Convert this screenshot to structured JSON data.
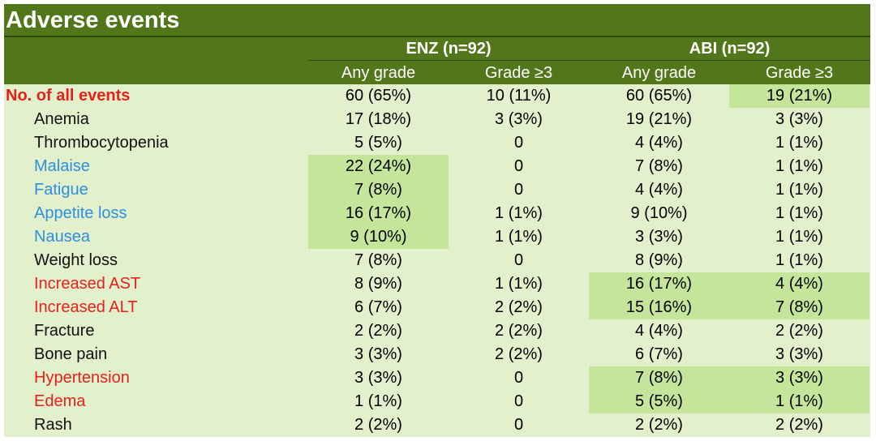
{
  "title": "Adverse events",
  "groups": [
    "ENZ (n=92)",
    "ABI (n=92)"
  ],
  "subheaders": [
    "Any grade",
    "Grade ≥3",
    "Any grade",
    "Grade ≥3"
  ],
  "colors": {
    "header": "#52761a",
    "cell": "#e2f0cc",
    "highlight": "#c5e59a",
    "red": "#e8201c",
    "blue": "#2e8fe0"
  },
  "rows": [
    {
      "label": "No. of all events",
      "style": "bold",
      "values": [
        "60 (65%)",
        "10 (11%)",
        "60 (65%)",
        "19 (21%)"
      ],
      "highlight": [
        false,
        false,
        false,
        true
      ]
    },
    {
      "label": "Anemia",
      "style": "black",
      "values": [
        "17 (18%)",
        "3 (3%)",
        "19 (21%)",
        "3 (3%)"
      ],
      "highlight": [
        false,
        false,
        false,
        false
      ]
    },
    {
      "label": "Thrombocytopenia",
      "style": "black",
      "values": [
        "5 (5%)",
        "0",
        "4 (4%)",
        "1 (1%)"
      ],
      "highlight": [
        false,
        false,
        false,
        false
      ]
    },
    {
      "label": "Malaise",
      "style": "blue",
      "values": [
        "22 (24%)",
        "0",
        "7 (8%)",
        "1 (1%)"
      ],
      "highlight": [
        true,
        false,
        false,
        false
      ]
    },
    {
      "label": "Fatigue",
      "style": "blue",
      "values": [
        "7 (8%)",
        "0",
        "4 (4%)",
        "1 (1%)"
      ],
      "highlight": [
        true,
        false,
        false,
        false
      ]
    },
    {
      "label": "Appetite loss",
      "style": "blue",
      "values": [
        "16 (17%)",
        "1 (1%)",
        "9 (10%)",
        "1 (1%)"
      ],
      "highlight": [
        true,
        false,
        false,
        false
      ]
    },
    {
      "label": "Nausea",
      "style": "blue",
      "values": [
        "9 (10%)",
        "1 (1%)",
        "3 (3%)",
        "1 (1%)"
      ],
      "highlight": [
        true,
        false,
        false,
        false
      ]
    },
    {
      "label": "Weight loss",
      "style": "black",
      "values": [
        "7 (8%)",
        "0",
        "8 (9%)",
        "1 (1%)"
      ],
      "highlight": [
        false,
        false,
        false,
        false
      ]
    },
    {
      "label": "Increased AST",
      "style": "red",
      "values": [
        "8 (9%)",
        "1 (1%)",
        "16 (17%)",
        "4 (4%)"
      ],
      "highlight": [
        false,
        false,
        true,
        true
      ]
    },
    {
      "label": "Increased ALT",
      "style": "red",
      "values": [
        "6 (7%)",
        "2 (2%)",
        "15 (16%)",
        "7 (8%)"
      ],
      "highlight": [
        false,
        false,
        true,
        true
      ]
    },
    {
      "label": "Fracture",
      "style": "black",
      "values": [
        "2 (2%)",
        "2 (2%)",
        "4 (4%)",
        "2 (2%)"
      ],
      "highlight": [
        false,
        false,
        false,
        false
      ]
    },
    {
      "label": "Bone pain",
      "style": "black",
      "values": [
        "3 (3%)",
        "2 (2%)",
        "6 (7%)",
        "3 (3%)"
      ],
      "highlight": [
        false,
        false,
        false,
        false
      ]
    },
    {
      "label": "Hypertension",
      "style": "red",
      "values": [
        "3 (3%)",
        "0",
        "7 (8%)",
        "3 (3%)"
      ],
      "highlight": [
        false,
        false,
        true,
        true
      ]
    },
    {
      "label": "Edema",
      "style": "red",
      "values": [
        "1 (1%)",
        "0",
        "5 (5%)",
        "1 (1%)"
      ],
      "highlight": [
        false,
        false,
        true,
        true
      ]
    },
    {
      "label": "Rash",
      "style": "black",
      "values": [
        "2 (2%)",
        "0",
        "2 (2%)",
        "2 (2%)"
      ],
      "highlight": [
        false,
        false,
        false,
        false
      ]
    }
  ]
}
